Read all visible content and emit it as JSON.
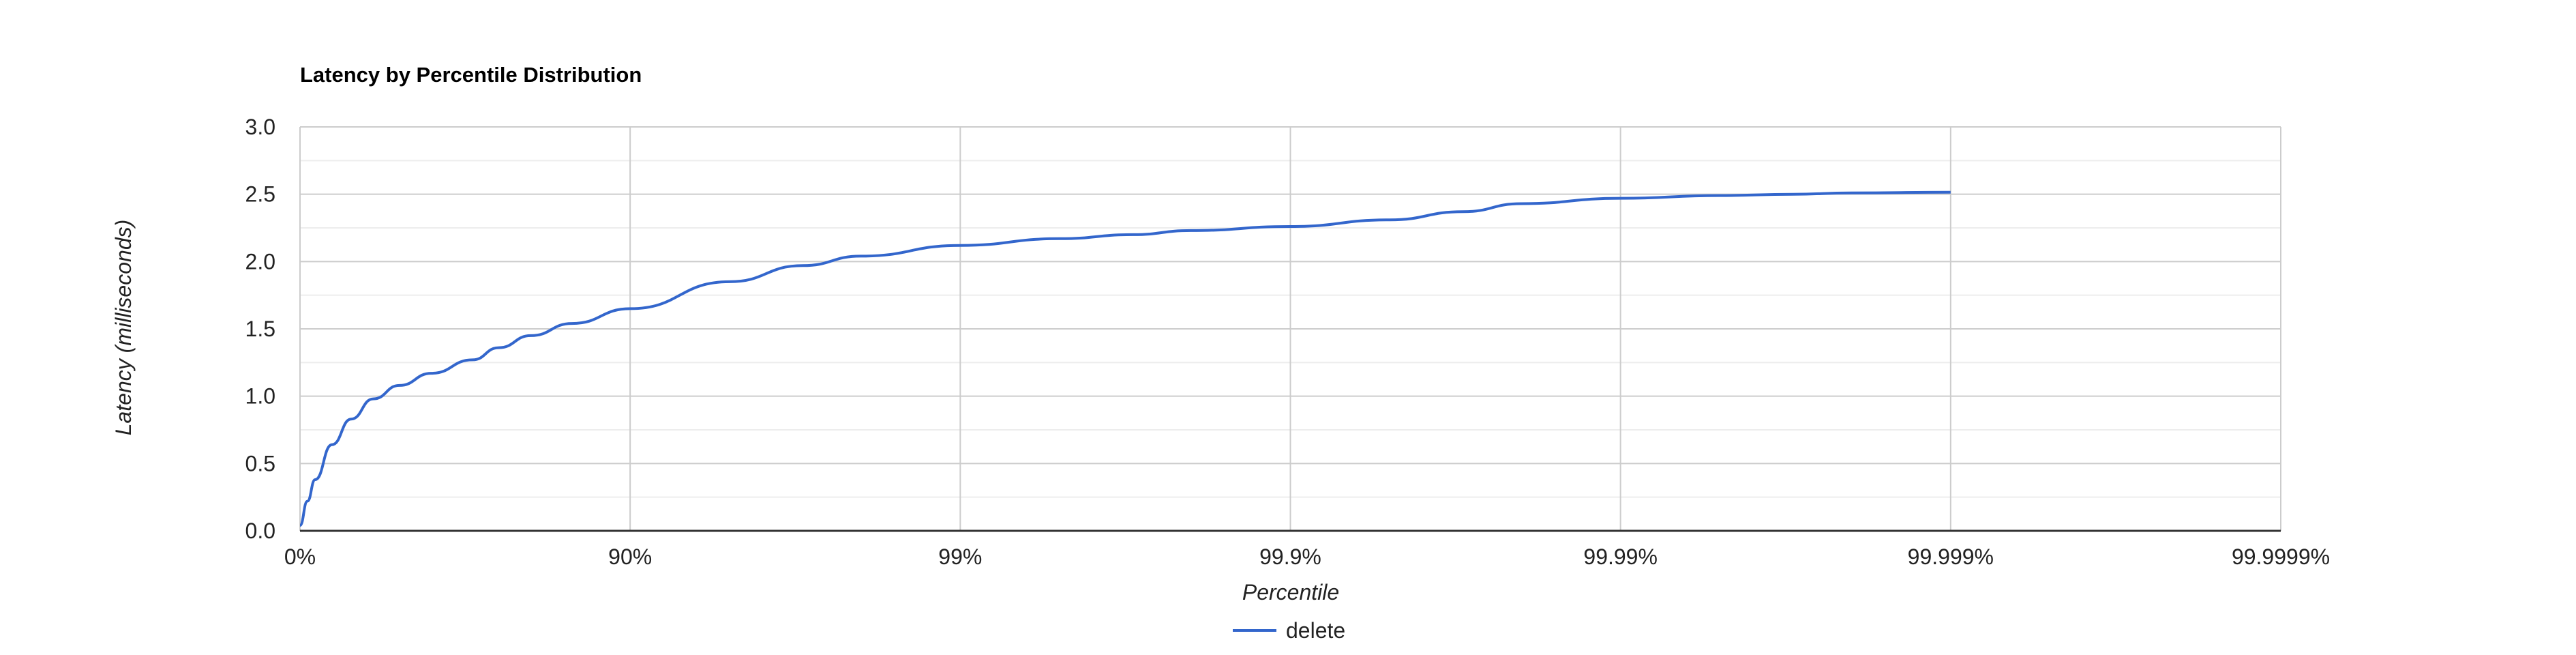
{
  "chart_data": {
    "type": "line",
    "title": "Latency by Percentile Distribution",
    "xlabel": "Percentile",
    "ylabel": "Latency (milliseconds)",
    "x_scale": "percentile (log of 1/(1-p))",
    "x_tick_labels": [
      "0%",
      "90%",
      "99%",
      "99.9%",
      "99.99%",
      "99.999%",
      "99.9999%"
    ],
    "y_ticks": [
      "0.0",
      "0.5",
      "1.0",
      "1.5",
      "2.0",
      "2.5",
      "3.0"
    ],
    "ylim": [
      0,
      3.0
    ],
    "grid": true,
    "legend_position": "bottom",
    "series": [
      {
        "name": "delete",
        "color": "#3366cc",
        "x": [
          "0%",
          "5%",
          "10%",
          "20%",
          "30%",
          "40%",
          "50%",
          "60%",
          "70%",
          "75%",
          "80%",
          "85%",
          "90%",
          "95%",
          "97%",
          "98%",
          "99%",
          "99.5%",
          "99.7%",
          "99.8%",
          "99.9%",
          "99.95%",
          "99.97%",
          "99.98%",
          "99.99%",
          "99.995%",
          "99.997%",
          "99.998%",
          "99.999%"
        ],
        "values": [
          0.04,
          0.22,
          0.38,
          0.64,
          0.83,
          0.98,
          1.08,
          1.17,
          1.27,
          1.36,
          1.45,
          1.54,
          1.65,
          1.85,
          1.97,
          2.04,
          2.12,
          2.17,
          2.2,
          2.23,
          2.26,
          2.31,
          2.37,
          2.43,
          2.47,
          2.49,
          2.5,
          2.51,
          2.515
        ]
      }
    ]
  }
}
